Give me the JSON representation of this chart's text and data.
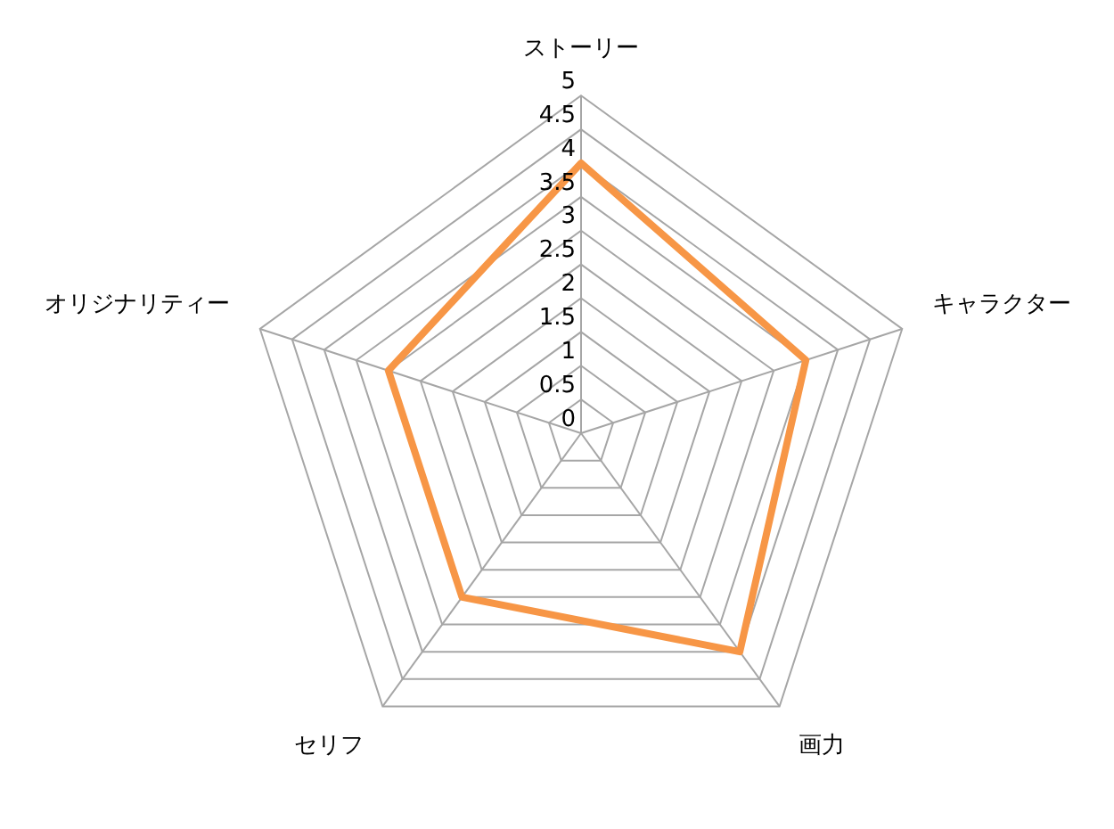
{
  "chart_data": {
    "type": "radar",
    "categories": [
      "ストーリー",
      "キャラクター",
      "画力",
      "セリフ",
      "オリジナリティー"
    ],
    "series": [
      {
        "color": "#f79646",
        "values": [
          4,
          3.5,
          4,
          3,
          3
        ]
      }
    ],
    "ylim": [
      0,
      5
    ],
    "yticks": [
      0,
      0.5,
      1,
      1.5,
      2,
      2.5,
      3,
      3.5,
      4,
      4.5,
      5
    ],
    "grid": true,
    "legend": false,
    "marker": "none",
    "line_style": "solid"
  }
}
